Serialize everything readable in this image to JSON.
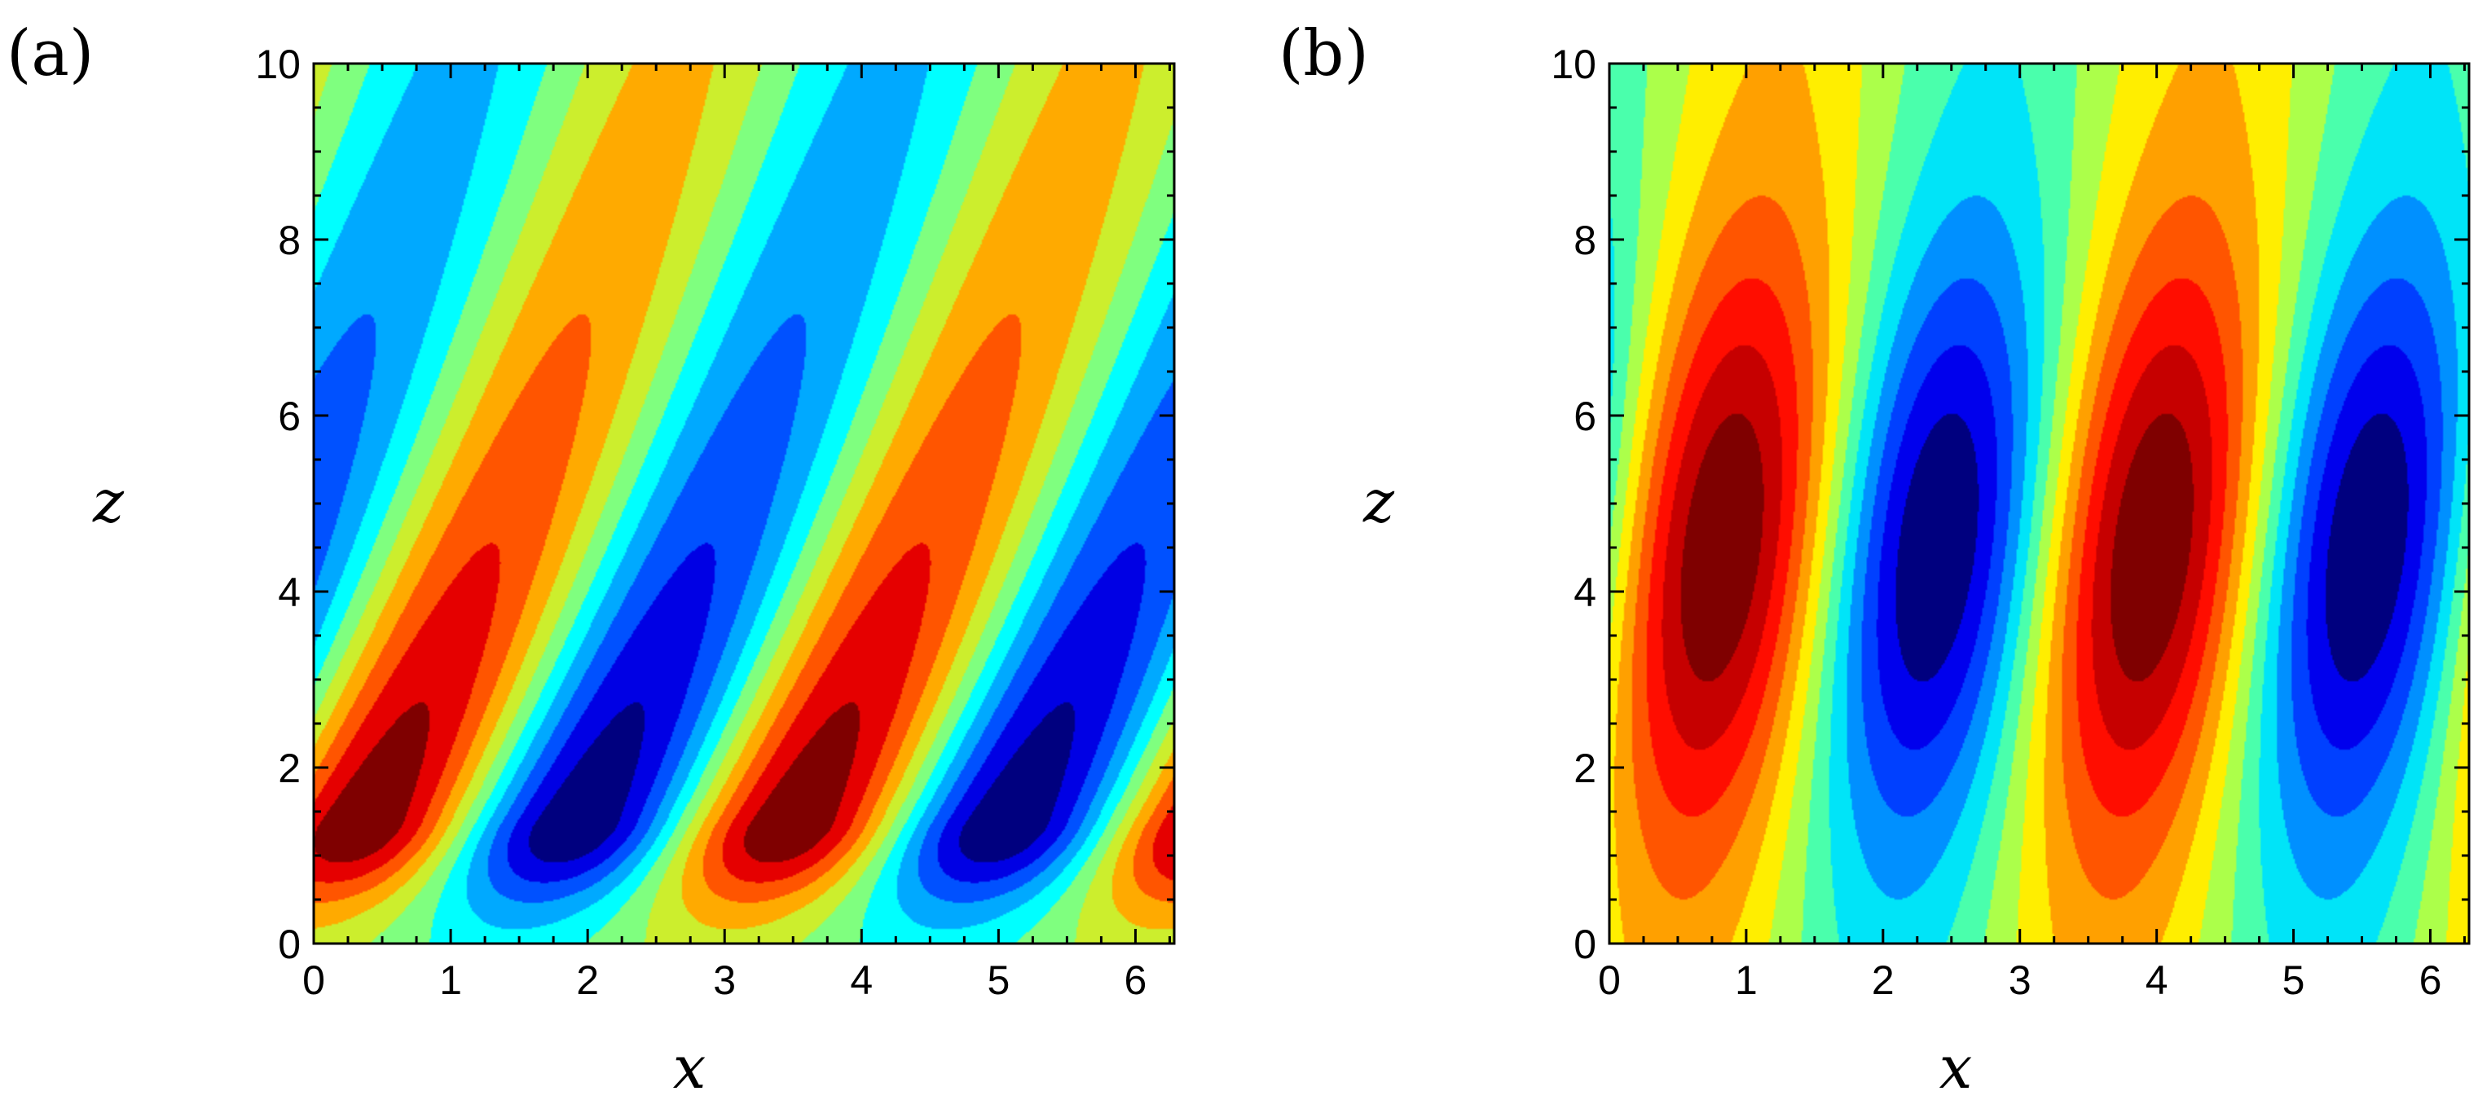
{
  "chart_data": [
    {
      "type": "heatmap",
      "subtype": "filled-contour",
      "panel_label": "(a)",
      "xlabel": "x",
      "ylabel": "z",
      "xlim": [
        0,
        6.283
      ],
      "ylim": [
        0,
        10
      ],
      "xticks": [
        0,
        1,
        2,
        3,
        4,
        5,
        6
      ],
      "yticks": [
        0,
        2,
        4,
        6,
        8,
        10
      ],
      "x_tick_labels": [
        "0",
        "1",
        "2",
        "3",
        "4",
        "5",
        "6"
      ],
      "y_tick_labels": [
        "0",
        "2",
        "4",
        "6",
        "8",
        "10"
      ],
      "field": {
        "description": "cos-wave field with x-wavenumber 2 and upward-tilted phase lines",
        "wavenumber_x": 2,
        "phase_offset": 0.32,
        "phase_tilt": 1.1,
        "phase_scale_height": 3.5,
        "amplitude_peak_z": 1.35,
        "amplitude_decay_above": 6,
        "amplitude_decay_below": 0.9,
        "amplitude_floor": 0.12
      },
      "contour_levels": 11,
      "colorscale": [
        "#7f0000",
        "#e50000",
        "#ff5500",
        "#ffaa00",
        "#ccee2d",
        "#7fff7f",
        "#00ffff",
        "#00a9ff",
        "#0051ff",
        "#0000e4",
        "#00007f"
      ]
    },
    {
      "type": "heatmap",
      "subtype": "filled-contour",
      "panel_label": "(b)",
      "xlabel": "x",
      "ylabel": "z",
      "xlim": [
        0,
        6.283
      ],
      "ylim": [
        0,
        10
      ],
      "xticks": [
        0,
        1,
        2,
        3,
        4,
        5,
        6
      ],
      "yticks": [
        0,
        2,
        4,
        6,
        8,
        10
      ],
      "x_tick_labels": [
        "0",
        "1",
        "2",
        "3",
        "4",
        "5",
        "6"
      ],
      "y_tick_labels": [
        "0",
        "2",
        "4",
        "6",
        "8",
        "10"
      ],
      "field": {
        "description": "cos-wave field with x-wavenumber 2, slightly tilted phase lines",
        "wavenumber_x": 2,
        "phase_offset": -1.0,
        "phase_tilt": 0.6,
        "phase_scale_height": 5,
        "amplitude_peak_z": 4.5,
        "amplitude_width": 3.3,
        "amplitude_floor": 0.2
      },
      "contour_levels": 13,
      "colorscale": [
        "#7f0000",
        "#c60000",
        "#ff0d00",
        "#ff5500",
        "#ffa000",
        "#ffee00",
        "#acff4a",
        "#4affac",
        "#00e4f8",
        "#0090ff",
        "#0040ff",
        "#0000ed",
        "#00007f"
      ]
    }
  ]
}
